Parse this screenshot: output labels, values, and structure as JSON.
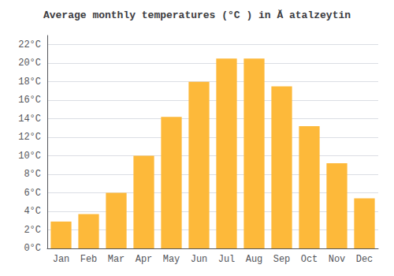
{
  "chart_data": {
    "type": "bar",
    "title": "Average monthly temperatures (°C ) in Ă atalzeytin",
    "categories": [
      "Jan",
      "Feb",
      "Mar",
      "Apr",
      "May",
      "Jun",
      "Jul",
      "Aug",
      "Sep",
      "Oct",
      "Nov",
      "Dec"
    ],
    "values": [
      2.9,
      3.7,
      6.0,
      10.0,
      14.2,
      18.0,
      20.5,
      20.5,
      17.5,
      13.2,
      9.2,
      5.4
    ],
    "color": "#FDB93A",
    "ylim": [
      0,
      23
    ],
    "yticks": [
      {
        "value": 0,
        "label": "0°C"
      },
      {
        "value": 2,
        "label": "2°C"
      },
      {
        "value": 4,
        "label": "4°C"
      },
      {
        "value": 6,
        "label": "6°C"
      },
      {
        "value": 8,
        "label": "8°C"
      },
      {
        "value": 10,
        "label": "10°C"
      },
      {
        "value": 12,
        "label": "12°C"
      },
      {
        "value": 14,
        "label": "14°C"
      },
      {
        "value": 16,
        "label": "16°C"
      },
      {
        "value": 18,
        "label": "18°C"
      },
      {
        "value": 20,
        "label": "20°C"
      },
      {
        "value": 22,
        "label": "22°C"
      }
    ],
    "grid": true
  }
}
